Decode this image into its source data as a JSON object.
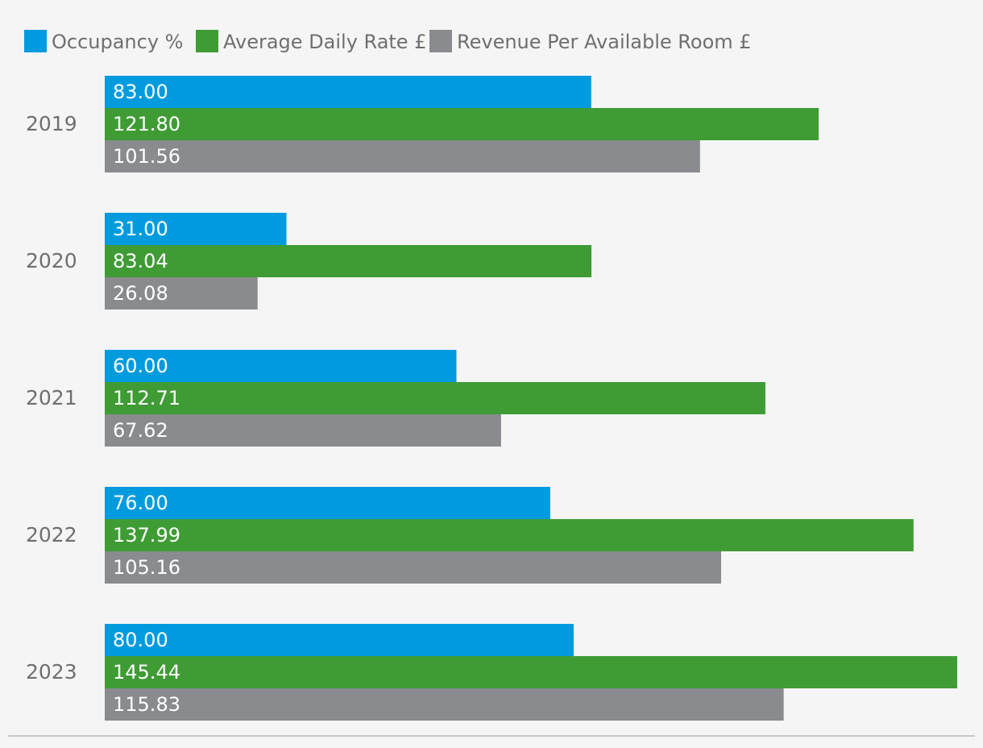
{
  "chart_data": {
    "type": "bar",
    "orientation": "horizontal",
    "categories": [
      "2019",
      "2020",
      "2021",
      "2022",
      "2023"
    ],
    "series": [
      {
        "name": "Occupancy %",
        "color": "#009bde",
        "values": [
          83.0,
          31.0,
          60.0,
          76.0,
          80.0
        ],
        "labels": [
          "83.00",
          "31.00",
          "60.00",
          "76.00",
          "80.00"
        ]
      },
      {
        "name": "Average Daily Rate £",
        "color": "#3f9c35",
        "values": [
          121.8,
          83.04,
          112.71,
          137.99,
          145.44
        ],
        "labels": [
          "121.80",
          "83.04",
          "112.71",
          "137.99",
          "145.44"
        ]
      },
      {
        "name": "Revenue Per Available Room £",
        "color": "#898b8e",
        "values": [
          101.56,
          26.08,
          67.62,
          105.16,
          115.83
        ],
        "labels": [
          "101.56",
          "26.08",
          "67.62",
          "105.16",
          "115.83"
        ]
      }
    ],
    "title": "",
    "xlabel": "",
    "ylabel": "",
    "xlim": [
      0,
      145.44
    ],
    "grid": false,
    "legend_position": "top-left",
    "background_color": "#f5f5f5",
    "text_color": "#6f6f6f",
    "axis_line_color": "#c8c8c8"
  }
}
